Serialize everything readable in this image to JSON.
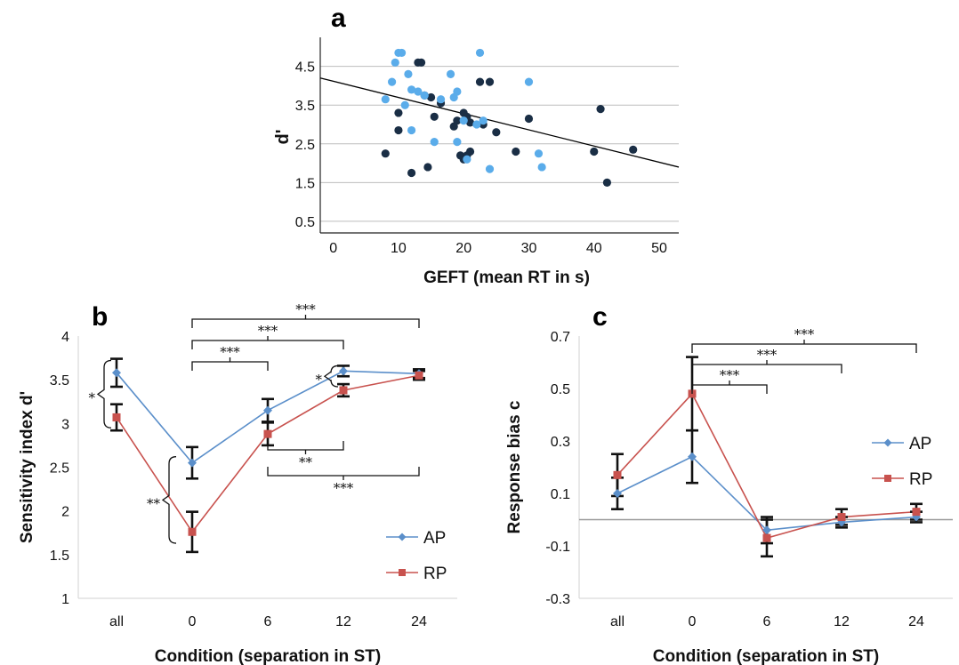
{
  "chart_data": [
    {
      "panel": "a",
      "type": "scatter",
      "xlabel": "GEFT (mean RT in s)",
      "ylabel": "d'",
      "xlim": [
        -2,
        53
      ],
      "ylim": [
        0.2,
        5.25
      ],
      "xticks": [
        "0",
        "10",
        "20",
        "30",
        "40",
        "50"
      ],
      "yticks": [
        "0.5",
        "1.5",
        "2.5",
        "3.5",
        "4.5"
      ],
      "grid": "horizontal",
      "colors": {
        "dark": "#1a2e45",
        "light": "#5aacea",
        "fit": "#000000"
      },
      "fit_line": {
        "x": [
          -2,
          53
        ],
        "y": [
          4.2,
          1.9
        ]
      },
      "series": [
        {
          "color": "#1a2e45",
          "x": [
            8,
            10,
            10,
            12,
            13,
            13.5,
            14,
            14.5,
            15,
            15.5,
            16.5,
            18.5,
            19,
            19.5,
            20,
            20,
            20.5,
            20.5,
            21,
            21,
            22.5,
            23,
            24,
            25,
            28,
            30,
            40,
            41,
            42,
            46
          ],
          "y": [
            2.25,
            2.85,
            3.3,
            1.75,
            4.6,
            4.6,
            3.75,
            1.9,
            3.7,
            3.2,
            3.55,
            2.95,
            3.1,
            2.2,
            3.3,
            2.1,
            3.2,
            2.2,
            3.05,
            2.3,
            4.1,
            3.0,
            4.1,
            2.8,
            2.3,
            3.15,
            2.3,
            3.4,
            1.5,
            2.35
          ]
        },
        {
          "color": "#5aacea",
          "x": [
            8,
            9,
            9.5,
            10,
            10.5,
            11,
            11.5,
            12,
            12,
            13,
            14,
            15.5,
            16.5,
            18,
            18.5,
            19,
            19,
            20,
            20.5,
            22,
            22.5,
            23,
            24,
            30,
            31.5,
            32
          ],
          "y": [
            3.65,
            4.1,
            4.6,
            4.85,
            4.85,
            3.5,
            4.3,
            3.9,
            2.85,
            3.85,
            3.75,
            2.55,
            3.65,
            4.3,
            3.7,
            3.85,
            2.55,
            3.1,
            2.1,
            3.0,
            4.85,
            3.1,
            1.85,
            4.1,
            2.25,
            1.9
          ]
        }
      ]
    },
    {
      "panel": "b",
      "type": "line",
      "xlabel": "Condition (separation in ST)",
      "ylabel": "Sensitivity index d'",
      "categories": [
        "all",
        "0",
        "6",
        "12",
        "24"
      ],
      "ylim": [
        1,
        4
      ],
      "yticks": [
        "1",
        "1.5",
        "2",
        "2.5",
        "3",
        "3.5",
        "4"
      ],
      "legend": "bottom-right",
      "series": [
        {
          "name": "AP",
          "color": "#5b8fca",
          "marker": "diamond",
          "values": [
            3.58,
            2.55,
            3.15,
            3.6,
            3.57
          ],
          "err": [
            0.16,
            0.18,
            0.13,
            0.06,
            0.05
          ]
        },
        {
          "name": "RP",
          "color": "#c8524e",
          "marker": "square",
          "values": [
            3.07,
            1.76,
            2.88,
            3.38,
            3.55
          ],
          "err": [
            0.15,
            0.23,
            0.13,
            0.07,
            0.05
          ]
        }
      ],
      "annotations": [
        {
          "label": "*",
          "between": [
            "all AP",
            "all RP"
          ]
        },
        {
          "label": "**",
          "between": [
            "0 AP",
            "0 RP"
          ]
        },
        {
          "label": "*",
          "between": [
            "12 AP",
            "12 RP"
          ]
        },
        {
          "label": "***",
          "between": [
            "0",
            "6"
          ]
        },
        {
          "label": "***",
          "between": [
            "0",
            "12"
          ]
        },
        {
          "label": "***",
          "between": [
            "0",
            "24"
          ]
        },
        {
          "label": "**",
          "between": [
            "6",
            "12"
          ]
        },
        {
          "label": "***",
          "between": [
            "6",
            "24"
          ]
        }
      ]
    },
    {
      "panel": "c",
      "type": "line",
      "xlabel": "Condition (separation in ST)",
      "ylabel": "Response bias c",
      "categories": [
        "all",
        "0",
        "6",
        "12",
        "24"
      ],
      "ylim": [
        -0.3,
        0.7
      ],
      "yticks": [
        "-0.3",
        "-0.1",
        "0.1",
        "0.3",
        "0.5",
        "0.7"
      ],
      "reference_line": 0,
      "legend": "right",
      "series": [
        {
          "name": "AP",
          "color": "#5b8fca",
          "marker": "diamond",
          "values": [
            0.1,
            0.24,
            -0.04,
            -0.01,
            0.01
          ],
          "err": [
            0.06,
            0.1,
            0.05,
            0.02,
            0.02
          ]
        },
        {
          "name": "RP",
          "color": "#c8524e",
          "marker": "square",
          "values": [
            0.17,
            0.48,
            -0.07,
            0.01,
            0.03
          ],
          "err": [
            0.08,
            0.14,
            0.07,
            0.03,
            0.03
          ]
        }
      ],
      "annotations": [
        {
          "label": "***",
          "between": [
            "0",
            "6"
          ]
        },
        {
          "label": "***",
          "between": [
            "0",
            "12"
          ]
        },
        {
          "label": "***",
          "between": [
            "0",
            "24"
          ]
        }
      ]
    }
  ]
}
